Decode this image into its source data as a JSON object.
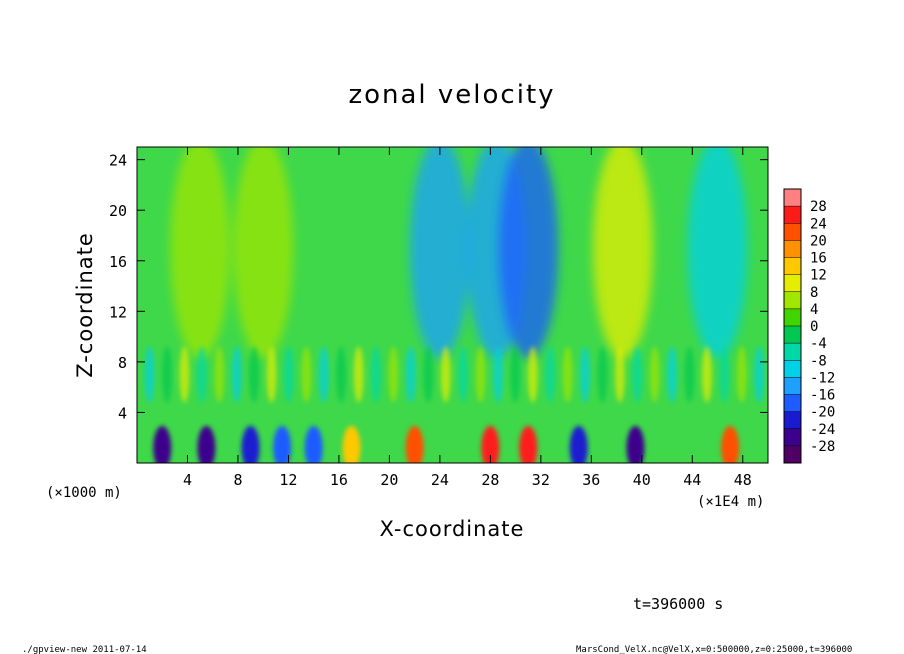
{
  "chart_data": {
    "type": "heatmap",
    "title": "zonal velocity",
    "xlabel": "X-coordinate",
    "ylabel": "Z-coordinate",
    "x_unit_left": "(×1000 m)",
    "x_unit_right": "(×1E4 m)",
    "xlim": [
      0,
      50
    ],
    "ylim": [
      0,
      25
    ],
    "x_ticks": [
      4,
      8,
      12,
      16,
      20,
      24,
      28,
      32,
      36,
      40,
      44,
      48
    ],
    "y_ticks": [
      4,
      8,
      12,
      16,
      20,
      24
    ],
    "colorbar": {
      "levels": [
        28,
        24,
        20,
        16,
        12,
        8,
        4,
        0,
        -4,
        -8,
        -12,
        -16,
        -20,
        -24,
        -28
      ],
      "colors": [
        "#ff8080",
        "#ff1a1a",
        "#ff5000",
        "#ff9000",
        "#ffc800",
        "#e6ee00",
        "#a0e600",
        "#40d400",
        "#00c850",
        "#00d8a8",
        "#00d0e8",
        "#1ea0ff",
        "#1e5cff",
        "#1a1ad0",
        "#3c008c",
        "#500064"
      ]
    },
    "surface_features": [
      {
        "x": 2.0,
        "velocity": -26
      },
      {
        "x": 5.5,
        "velocity": -24
      },
      {
        "x": 9.0,
        "velocity": -20
      },
      {
        "x": 11.5,
        "velocity": -18
      },
      {
        "x": 14.0,
        "velocity": -16
      },
      {
        "x": 17.0,
        "velocity": 14
      },
      {
        "x": 22.0,
        "velocity": 24
      },
      {
        "x": 28.0,
        "velocity": 26
      },
      {
        "x": 31.0,
        "velocity": 26
      },
      {
        "x": 35.0,
        "velocity": -20
      },
      {
        "x": 39.5,
        "velocity": -24
      },
      {
        "x": 47.0,
        "velocity": 22
      }
    ],
    "upper_band": [
      {
        "x": 5,
        "velocity": 8
      },
      {
        "x": 10,
        "velocity": 6
      },
      {
        "x": 24,
        "velocity": -12
      },
      {
        "x": 28.5,
        "velocity": -14
      },
      {
        "x": 31,
        "velocity": -18
      },
      {
        "x": 38.5,
        "velocity": 10
      },
      {
        "x": 46,
        "velocity": -8
      }
    ],
    "time_label": "t=396000 s"
  },
  "footer": {
    "left": "./gpview-new  2011-07-14",
    "right": "MarsCond_VelX.nc@VelX,x=0:500000,z=0:25000,t=396000"
  }
}
